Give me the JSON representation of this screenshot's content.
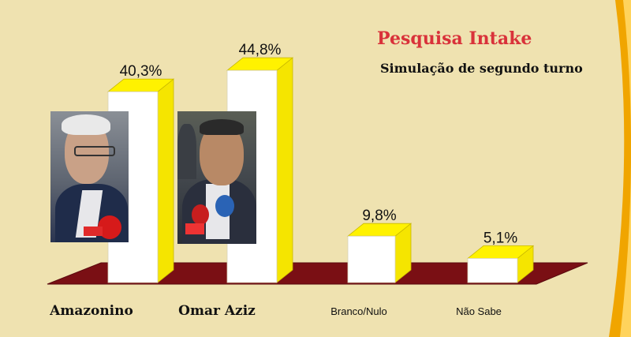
{
  "header": {
    "title": "Pesquisa Intake",
    "subtitle": "Simulação de segundo turno"
  },
  "colors": {
    "background": "#efe2b0",
    "bar_front": "#ffffff",
    "bar_side": "#f5e500",
    "bar_top": "#fff200",
    "floor": "#7a0f14",
    "title": "#d9323a",
    "accent_stripe": "#f0a500"
  },
  "chart_data": {
    "type": "bar",
    "title": "Pesquisa Intake",
    "subtitle": "Simulação de segundo turno",
    "categories": [
      "Amazonino",
      "Omar Aziz",
      "Branco/Nulo",
      "Não Sabe"
    ],
    "values": [
      40.3,
      44.8,
      9.8,
      5.1
    ],
    "value_labels": [
      "40,3%",
      "44,8%",
      "9,8%",
      "5,1%"
    ],
    "unit": "%",
    "ylim": [
      0,
      50
    ],
    "grid": false,
    "style": "3d"
  },
  "photos": [
    {
      "icon": "candidate-photo-amazonino"
    },
    {
      "icon": "candidate-photo-omar-aziz"
    }
  ]
}
